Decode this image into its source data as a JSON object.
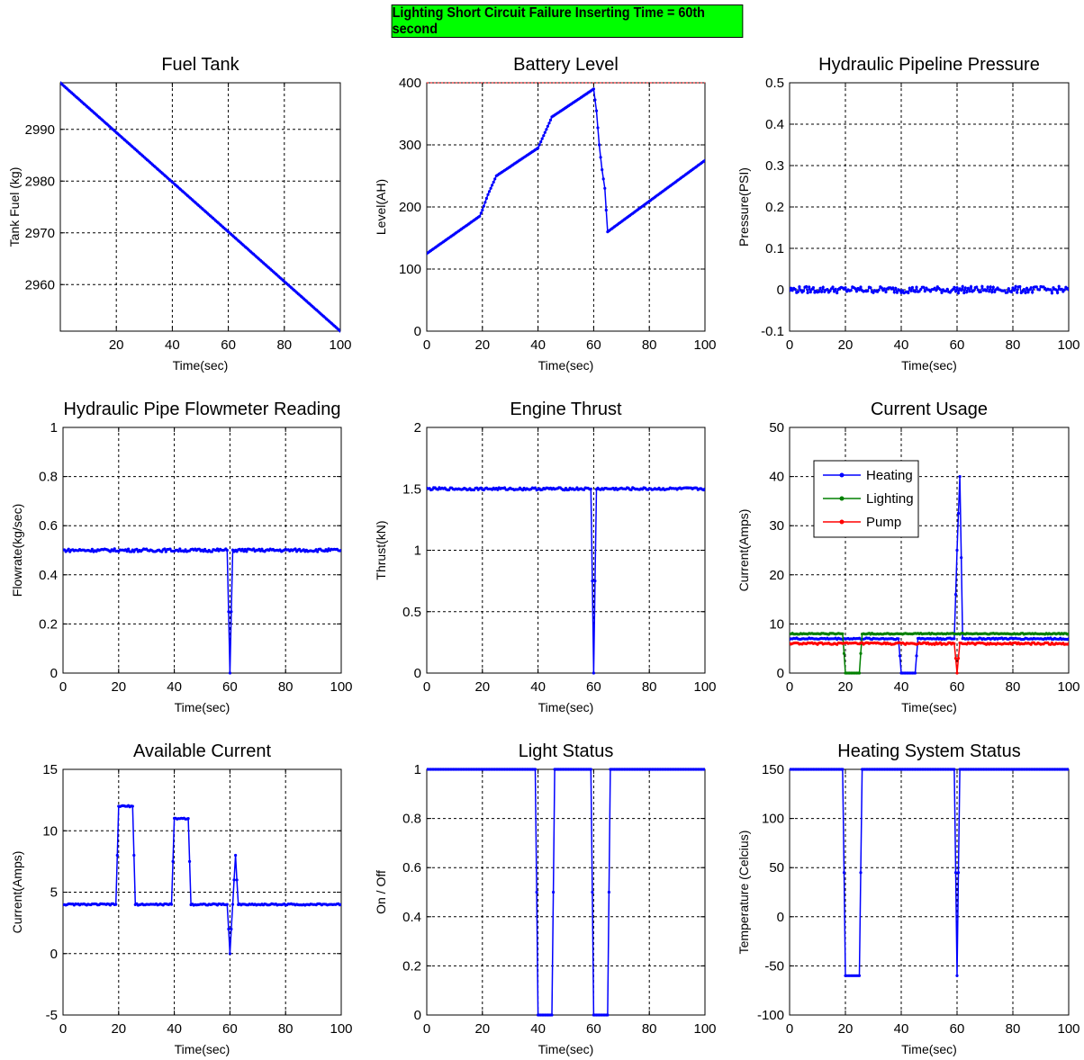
{
  "banner": {
    "text": "Lighting Short Circuit Failure Inserting Time = 60th second",
    "color": "#00ff00"
  },
  "colors": {
    "series_blue": "#0000ff",
    "series_green": "#008000",
    "series_red": "#ff0000",
    "grid": "#000000"
  },
  "chart_data": [
    {
      "id": "fuel",
      "type": "line",
      "title": "Fuel Tank",
      "xlabel": "Time(sec)",
      "ylabel": "Tank Fuel (kg)",
      "xlim": [
        0,
        100
      ],
      "ylim": [
        2951,
        2999
      ],
      "xticks": [
        20,
        40,
        60,
        80,
        100
      ],
      "yticks": [
        2960,
        2970,
        2980,
        2990
      ],
      "grid": true,
      "series": [
        {
          "color": "#0000ff",
          "x": [
            0,
            100
          ],
          "y": [
            2999,
            2951
          ],
          "dense": true
        }
      ]
    },
    {
      "id": "battery",
      "type": "line",
      "title": "Battery Level",
      "xlabel": "Time(sec)",
      "ylabel": "Level(AH)",
      "xlim": [
        0,
        100
      ],
      "ylim": [
        0,
        400
      ],
      "xticks": [
        0,
        20,
        40,
        60,
        80,
        100
      ],
      "yticks": [
        0,
        100,
        200,
        300,
        400
      ],
      "grid": true,
      "threshold": {
        "y": 400,
        "color": "#ff0000"
      },
      "series": [
        {
          "color": "#0000ff",
          "x": [
            0,
            19,
            20,
            22,
            25,
            30,
            40,
            45,
            60,
            61,
            62,
            63,
            64,
            65,
            100
          ],
          "y": [
            125,
            185,
            195,
            220,
            250,
            265,
            295,
            345,
            390,
            355,
            300,
            260,
            230,
            160,
            275
          ],
          "dense": true
        }
      ]
    },
    {
      "id": "pressure",
      "type": "line",
      "title": "Hydraulic Pipeline Pressure",
      "xlabel": "Time(sec)",
      "ylabel": "Pressure(PSI)",
      "xlim": [
        0,
        100
      ],
      "ylim": [
        -0.1,
        0.5
      ],
      "xticks": [
        0,
        20,
        40,
        60,
        80,
        100
      ],
      "yticks": [
        -0.1,
        0,
        0.1,
        0.2,
        0.3,
        0.4,
        0.5
      ],
      "grid": true,
      "series": [
        {
          "color": "#0000ff",
          "x": [
            0,
            100
          ],
          "y": [
            0,
            0
          ],
          "dense": true,
          "noise": 0.008
        }
      ]
    },
    {
      "id": "flow",
      "type": "line",
      "title": "Hydraulic Pipe Flowmeter Reading",
      "xlabel": "Time(sec)",
      "ylabel": "Flowrate(kg/sec)",
      "xlim": [
        0,
        100
      ],
      "ylim": [
        0,
        1
      ],
      "xticks": [
        0,
        20,
        40,
        60,
        80,
        100
      ],
      "yticks": [
        0,
        0.2,
        0.4,
        0.6,
        0.8,
        1
      ],
      "grid": true,
      "series": [
        {
          "color": "#0000ff",
          "x": [
            0,
            59,
            60,
            61,
            100
          ],
          "y": [
            0.5,
            0.5,
            0,
            0.5,
            0.5
          ],
          "dense": true,
          "noise": 0.006
        }
      ]
    },
    {
      "id": "thrust",
      "type": "line",
      "title": "Engine Thrust",
      "xlabel": "Time(sec)",
      "ylabel": "Thrust(kN)",
      "xlim": [
        0,
        100
      ],
      "ylim": [
        0,
        2
      ],
      "xticks": [
        0,
        20,
        40,
        60,
        80,
        100
      ],
      "yticks": [
        0,
        0.5,
        1,
        1.5,
        2
      ],
      "grid": true,
      "series": [
        {
          "color": "#0000ff",
          "x": [
            0,
            59,
            60,
            61,
            100
          ],
          "y": [
            1.5,
            1.5,
            0,
            1.5,
            1.5
          ],
          "dense": true,
          "noise": 0.01
        }
      ]
    },
    {
      "id": "current",
      "type": "line",
      "title": "Current Usage",
      "xlabel": "Time(sec)",
      "ylabel": "Current(Amps)",
      "xlim": [
        0,
        100
      ],
      "ylim": [
        0,
        50
      ],
      "xticks": [
        0,
        20,
        40,
        60,
        80,
        100
      ],
      "yticks": [
        0,
        10,
        20,
        30,
        40,
        50
      ],
      "grid": true,
      "legend": {
        "placement": "top-left"
      },
      "series": [
        {
          "name": "Heating",
          "color": "#0000ff",
          "x": [
            0,
            39,
            40,
            45,
            46,
            59,
            60,
            61,
            62,
            63,
            100
          ],
          "y": [
            7,
            7,
            0,
            0,
            7,
            7,
            25,
            40,
            7,
            7,
            7
          ],
          "dense": true,
          "noise": 0.15
        },
        {
          "name": "Lighting",
          "color": "#008000",
          "x": [
            0,
            19,
            20,
            25,
            26,
            100
          ],
          "y": [
            8,
            8,
            0,
            0,
            8,
            8
          ],
          "dense": true,
          "noise": 0.12
        },
        {
          "name": "Pump",
          "color": "#ff0000",
          "x": [
            0,
            59,
            60,
            61,
            100
          ],
          "y": [
            6,
            6,
            0,
            6,
            6
          ],
          "dense": true,
          "noise": 0.2
        }
      ]
    },
    {
      "id": "available",
      "type": "line",
      "title": "Available Current",
      "xlabel": "Time(sec)",
      "ylabel": "Current(Amps)",
      "xlim": [
        0,
        100
      ],
      "ylim": [
        -5,
        15
      ],
      "xticks": [
        0,
        20,
        40,
        60,
        80,
        100
      ],
      "yticks": [
        -5,
        0,
        5,
        10,
        15
      ],
      "grid": true,
      "series": [
        {
          "color": "#0000ff",
          "x": [
            0,
            19,
            20,
            25,
            26,
            39,
            40,
            45,
            46,
            59,
            60,
            61,
            62,
            63,
            100
          ],
          "y": [
            4,
            4,
            12,
            12,
            4,
            4,
            11,
            11,
            4,
            4,
            0,
            4,
            8,
            4,
            4
          ],
          "dense": true,
          "noise": 0.06
        }
      ]
    },
    {
      "id": "light",
      "type": "line",
      "title": "Light Status",
      "xlabel": "Time(sec)",
      "ylabel": "On / Off",
      "xlim": [
        0,
        100
      ],
      "ylim": [
        0,
        1
      ],
      "xticks": [
        0,
        20,
        40,
        60,
        80,
        100
      ],
      "yticks": [
        0,
        0.2,
        0.4,
        0.6,
        0.8,
        1
      ],
      "grid": true,
      "series": [
        {
          "color": "#0000ff",
          "x": [
            0,
            39,
            40,
            45,
            46,
            59,
            60,
            65,
            66,
            100
          ],
          "y": [
            1,
            1,
            0,
            0,
            1,
            1,
            0,
            0,
            1,
            1
          ],
          "dense": true
        }
      ]
    },
    {
      "id": "heating",
      "type": "line",
      "title": "Heating System Status",
      "xlabel": "Time(sec)",
      "ylabel": "Temperature (Celcius)",
      "xlim": [
        0,
        100
      ],
      "ylim": [
        -100,
        150
      ],
      "xticks": [
        0,
        20,
        40,
        60,
        80,
        100
      ],
      "yticks": [
        -100,
        -50,
        0,
        50,
        100,
        150
      ],
      "grid": true,
      "series": [
        {
          "color": "#0000ff",
          "x": [
            0,
            19,
            20,
            25,
            26,
            59,
            60,
            61,
            100
          ],
          "y": [
            150,
            150,
            -60,
            -60,
            150,
            150,
            -60,
            150,
            150
          ],
          "dense": true
        }
      ]
    }
  ]
}
